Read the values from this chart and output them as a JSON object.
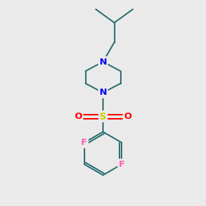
{
  "background_color": "#eaeaea",
  "bond_color": "#2d6e6e",
  "bond_width": 1.5,
  "atom_colors": {
    "N": "#0000ee",
    "S": "#cccc00",
    "O": "#ff0000",
    "F": "#ff60b0",
    "C": "#2d6e6e"
  },
  "font_size": 9.5,
  "figsize": [
    3.0,
    3.0
  ],
  "dpi": 100
}
